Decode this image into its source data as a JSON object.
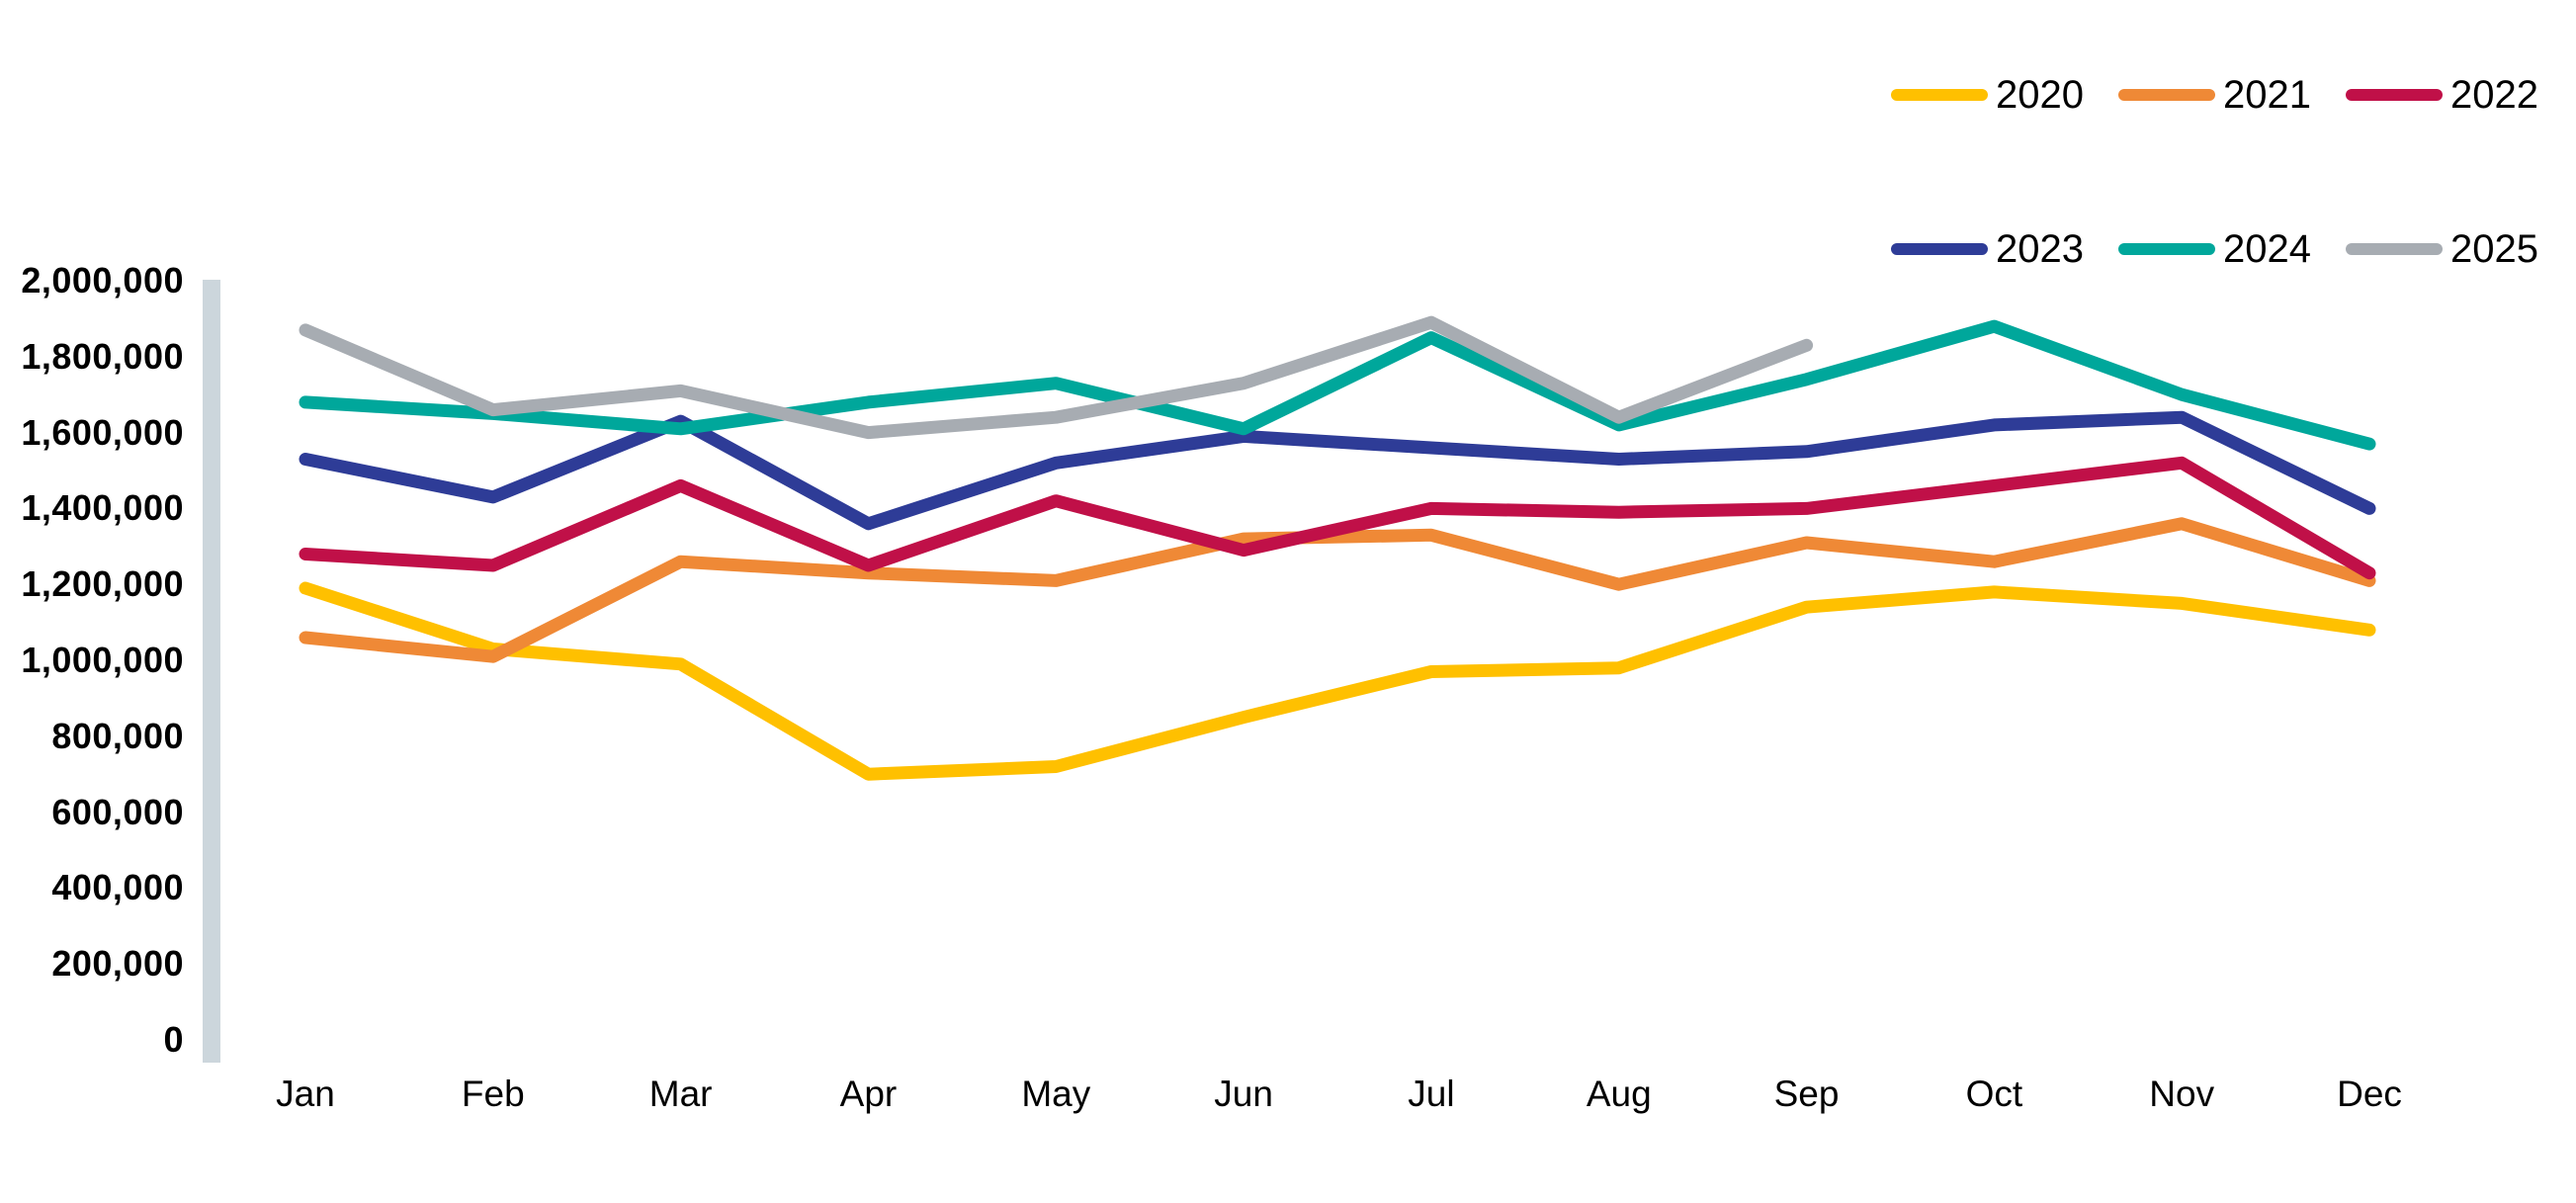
{
  "background": "#FFFFFF",
  "text_color": "#000000",
  "axis_bar_color": "#CCD6DC",
  "chart_data": {
    "type": "line",
    "title": "",
    "xlabel": "",
    "ylabel": "",
    "categories": [
      "Jan",
      "Feb",
      "Mar",
      "Apr",
      "May",
      "Jun",
      "Jul",
      "Aug",
      "Sep",
      "Oct",
      "Nov",
      "Dec"
    ],
    "series": [
      {
        "name": "2020",
        "color": "#FFC000",
        "values": [
          1190000,
          1030000,
          990000,
          700000,
          720000,
          850000,
          970000,
          980000,
          1140000,
          1180000,
          1150000,
          1080000
        ]
      },
      {
        "name": "2021",
        "color": "#EF8936",
        "values": [
          1060000,
          1010000,
          1260000,
          1230000,
          1210000,
          1320000,
          1330000,
          1200000,
          1310000,
          1260000,
          1360000,
          1210000
        ]
      },
      {
        "name": "2022",
        "color": "#C01048",
        "values": [
          1280000,
          1250000,
          1460000,
          1250000,
          1420000,
          1290000,
          1400000,
          1390000,
          1400000,
          1460000,
          1520000,
          1230000
        ]
      },
      {
        "name": "2023",
        "color": "#2E3C97",
        "values": [
          1530000,
          1430000,
          1630000,
          1360000,
          1520000,
          1590000,
          1560000,
          1530000,
          1550000,
          1620000,
          1640000,
          1400000
        ]
      },
      {
        "name": "2024",
        "color": "#00A79B",
        "values": [
          1680000,
          1650000,
          1610000,
          1680000,
          1730000,
          1610000,
          1850000,
          1620000,
          1740000,
          1880000,
          1700000,
          1570000
        ]
      },
      {
        "name": "2025",
        "color": "#A7ACB2",
        "values": [
          1870000,
          1660000,
          1710000,
          1600000,
          1640000,
          1730000,
          1890000,
          1640000,
          1830000,
          null,
          null,
          null
        ]
      }
    ],
    "ylim": [
      0,
      2000000
    ],
    "y_tick_step": 200000,
    "y_tick_labels": [
      "0",
      "200,000",
      "400,000",
      "600,000",
      "800,000",
      "1,000,000",
      "1,200,000",
      "1,400,000",
      "1,600,000",
      "1,800,000",
      "2,000,000"
    ],
    "grid": "off",
    "legend_position": "top-right",
    "legend_rows": [
      [
        "2020",
        "2021",
        "2022"
      ],
      [
        "2023",
        "2024",
        "2025"
      ]
    ]
  }
}
